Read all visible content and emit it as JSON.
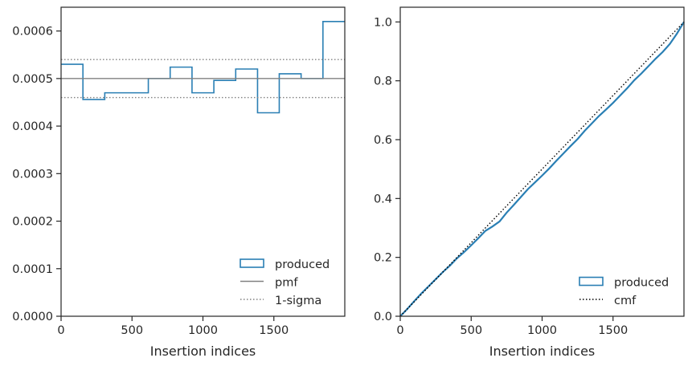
{
  "chart_data": [
    {
      "type": "step",
      "xlabel": "Insertion indices",
      "ylabel": "",
      "xlim": [
        0,
        2000
      ],
      "ylim": [
        0,
        0.00065
      ],
      "xticks": [
        0,
        500,
        1000,
        1500
      ],
      "yticks": [
        0,
        0.0001,
        0.0002,
        0.0003,
        0.0004,
        0.0005,
        0.0006
      ],
      "ytick_labels": [
        "0.0000",
        "0.0001",
        "0.0002",
        "0.0003",
        "0.0004",
        "0.0005",
        "0.0006"
      ],
      "xtick_labels": [
        "0",
        "500",
        "1000",
        "1500"
      ],
      "series": [
        {
          "name": "produced",
          "color": "#2a7fb4",
          "bin_edges": [
            0,
            154,
            308,
            462,
            615,
            769,
            923,
            1077,
            1231,
            1385,
            1538,
            1692,
            1846,
            2000
          ],
          "values": [
            0.00053,
            0.000456,
            0.00047,
            0.00047,
            0.0005,
            0.000524,
            0.00047,
            0.000496,
            0.00052,
            0.000428,
            0.00051,
            0.0005,
            0.00062
          ]
        },
        {
          "name": "pmf",
          "color": "#808080",
          "style": "solid",
          "y": 0.0005
        },
        {
          "name": "1-sigma",
          "color": "#808080",
          "style": "dotted",
          "y": [
            0.00046,
            0.00054
          ]
        }
      ],
      "legend": {
        "position": "lower-right",
        "entries": [
          "produced",
          "pmf",
          "1-sigma"
        ]
      },
      "grid": false
    },
    {
      "type": "step",
      "xlabel": "Insertion indices",
      "ylabel": "",
      "xlim": [
        0,
        2000
      ],
      "ylim": [
        0,
        1.05
      ],
      "xticks": [
        0,
        500,
        1000,
        1500
      ],
      "xtick_labels": [
        "0",
        "500",
        "1000",
        "1500"
      ],
      "yticks": [
        0,
        0.2,
        0.4,
        0.6,
        0.8,
        1.0
      ],
      "ytick_labels": [
        "0.0",
        "0.2",
        "0.4",
        "0.6",
        "0.8",
        "1.0"
      ],
      "series": [
        {
          "name": "produced",
          "color": "#2a7fb4",
          "x": [
            0,
            50,
            100,
            150,
            200,
            250,
            300,
            350,
            400,
            450,
            500,
            550,
            600,
            650,
            700,
            750,
            800,
            850,
            900,
            950,
            1000,
            1050,
            1100,
            1150,
            1200,
            1250,
            1300,
            1350,
            1400,
            1450,
            1500,
            1550,
            1600,
            1650,
            1700,
            1750,
            1800,
            1850,
            1900,
            1950,
            2000
          ],
          "y": [
            0,
            0.025,
            0.052,
            0.078,
            0.102,
            0.126,
            0.15,
            0.172,
            0.197,
            0.218,
            0.241,
            0.265,
            0.29,
            0.305,
            0.322,
            0.352,
            0.378,
            0.405,
            0.432,
            0.455,
            0.478,
            0.502,
            0.528,
            0.553,
            0.578,
            0.602,
            0.63,
            0.655,
            0.68,
            0.702,
            0.725,
            0.75,
            0.775,
            0.802,
            0.825,
            0.85,
            0.875,
            0.898,
            0.925,
            0.96,
            1.0
          ]
        },
        {
          "name": "cmf",
          "color": "#000000",
          "style": "dotted",
          "x": [
            0,
            2000
          ],
          "y": [
            0,
            1.0
          ]
        }
      ],
      "legend": {
        "position": "lower-right",
        "entries": [
          "produced",
          "cmf"
        ]
      },
      "grid": false
    }
  ]
}
